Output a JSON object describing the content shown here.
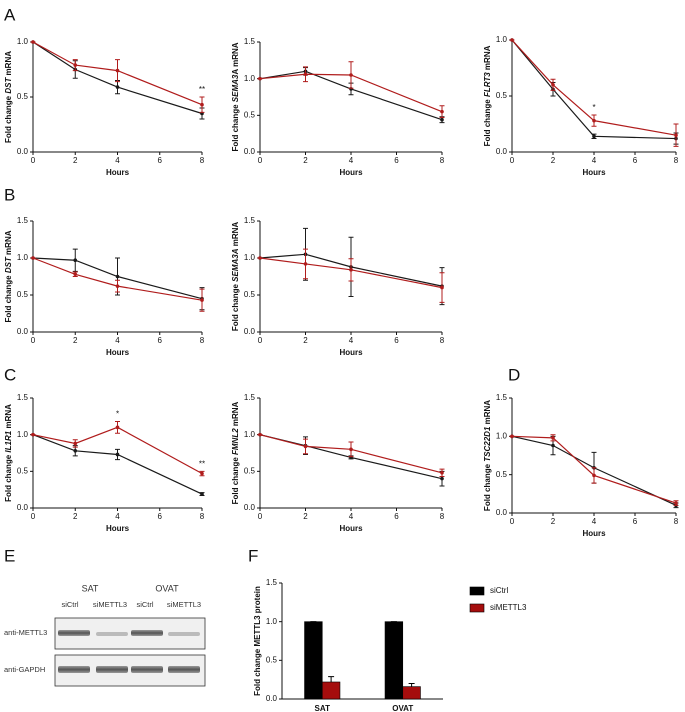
{
  "panel_labels": [
    "A",
    "B",
    "C",
    "D",
    "E",
    "F"
  ],
  "western_blot": {
    "groups": [
      "SAT",
      "OVAT"
    ],
    "lanes": [
      "siCtrl",
      "siMETTL3",
      "siCtrl",
      "siMETTL3"
    ],
    "antibodies": [
      "anti-METTL3",
      "anti-GAPDH"
    ]
  },
  "chart_data": [
    {
      "type": "line",
      "ylabel": [
        "Fold change ",
        "DST",
        " mRNA"
      ],
      "xlabel": "Hours",
      "x": [
        0,
        2,
        4,
        8
      ],
      "xlim": [
        0,
        8
      ],
      "xticks": [
        0,
        2,
        4,
        6,
        8
      ],
      "ylim": [
        0,
        1
      ],
      "yticks": [
        {
          "value": 0,
          "label": "0.0"
        },
        {
          "value": 0.5,
          "label": "0.5"
        },
        {
          "value": 1,
          "label": "1.0"
        }
      ],
      "series": [
        {
          "color": "#1a1a1a",
          "values": [
            1,
            0.75,
            0.59,
            0.35
          ],
          "errors": [
            0,
            0.08,
            0.06,
            0.05
          ]
        },
        {
          "color": "#b01c1c",
          "values": [
            1,
            0.79,
            0.74,
            0.43
          ],
          "errors": [
            0,
            0.05,
            0.1,
            0.07
          ]
        }
      ],
      "annotations": [
        {
          "text": "**",
          "x": 8
        }
      ]
    },
    {
      "type": "line",
      "ylabel": [
        "Fold change ",
        "SEMA3",
        "A mRNA"
      ],
      "xlabel": "Hours",
      "x": [
        0,
        2,
        4,
        8
      ],
      "xlim": [
        0,
        8
      ],
      "xticks": [
        0,
        2,
        4,
        6,
        8
      ],
      "ylim": [
        0,
        1.5
      ],
      "yticks": [
        {
          "value": 0,
          "label": "0.0"
        },
        {
          "value": 0.5,
          "label": "0.5"
        },
        {
          "value": 1,
          "label": "1.0"
        },
        {
          "value": 1.5,
          "label": "1.5"
        }
      ],
      "series": [
        {
          "color": "#1a1a1a",
          "values": [
            1,
            1.1,
            0.86,
            0.44
          ],
          "errors": [
            0,
            0.05,
            0.08,
            0.04
          ]
        },
        {
          "color": "#b01c1c",
          "values": [
            1,
            1.06,
            1.05,
            0.55
          ],
          "errors": [
            0,
            0.1,
            0.18,
            0.08
          ]
        }
      ]
    },
    {
      "type": "line",
      "ylabel": [
        "Fold change ",
        "FLRT3",
        " mRNA"
      ],
      "xlabel": "Hours",
      "x": [
        0,
        2,
        4,
        8
      ],
      "xlim": [
        0,
        8
      ],
      "xticks": [
        0,
        2,
        4,
        6,
        8
      ],
      "ylim": [
        0,
        1
      ],
      "yticks": [
        {
          "value": 0,
          "label": "0.0"
        },
        {
          "value": 0.5,
          "label": "0.5"
        },
        {
          "value": 1,
          "label": "1.0"
        }
      ],
      "series": [
        {
          "color": "#1a1a1a",
          "values": [
            1,
            0.56,
            0.14,
            0.12
          ],
          "errors": [
            0,
            0.06,
            0.02,
            0.05
          ]
        },
        {
          "color": "#b01c1c",
          "values": [
            1,
            0.6,
            0.28,
            0.15
          ],
          "errors": [
            0,
            0.05,
            0.05,
            0.1
          ]
        }
      ],
      "annotations": [
        {
          "text": "*",
          "x": 4
        }
      ]
    },
    {
      "type": "line",
      "ylabel": [
        "Fold change ",
        "DST",
        " mRNA"
      ],
      "xlabel": "Hours",
      "x": [
        0,
        2,
        4,
        8
      ],
      "xlim": [
        0,
        8
      ],
      "xticks": [
        0,
        2,
        4,
        6,
        8
      ],
      "ylim": [
        0,
        1.5
      ],
      "yticks": [
        {
          "value": 0,
          "label": "0.0"
        },
        {
          "value": 0.5,
          "label": "0.5"
        },
        {
          "value": 1,
          "label": "1.0"
        },
        {
          "value": 1.5,
          "label": "1.5"
        }
      ],
      "series": [
        {
          "color": "#1a1a1a",
          "values": [
            1,
            0.97,
            0.75,
            0.45
          ],
          "errors": [
            0,
            0.15,
            0.25,
            0.15
          ]
        },
        {
          "color": "#b01c1c",
          "values": [
            1,
            0.78,
            0.62,
            0.43
          ],
          "errors": [
            0,
            0.03,
            0.08,
            0.15
          ]
        }
      ]
    },
    {
      "type": "line",
      "ylabel": [
        "Fold change ",
        "SEMA3A",
        " mRNA"
      ],
      "xlabel": "Hours",
      "x": [
        0,
        2,
        4,
        8
      ],
      "xlim": [
        0,
        8
      ],
      "xticks": [
        0,
        2,
        4,
        6,
        8
      ],
      "ylim": [
        0,
        1.5
      ],
      "yticks": [
        {
          "value": 0,
          "label": "0.0"
        },
        {
          "value": 0.5,
          "label": "0.5"
        },
        {
          "value": 1,
          "label": "1.0"
        },
        {
          "value": 1.5,
          "label": "1.5"
        }
      ],
      "series": [
        {
          "color": "#1a1a1a",
          "values": [
            1,
            1.05,
            0.88,
            0.62
          ],
          "errors": [
            0,
            0.35,
            0.4,
            0.25
          ]
        },
        {
          "color": "#b01c1c",
          "values": [
            1,
            0.92,
            0.84,
            0.6
          ],
          "errors": [
            0,
            0.2,
            0.15,
            0.2
          ]
        }
      ]
    },
    {
      "type": "line",
      "ylabel": [
        "Fold change ",
        "IL1R1",
        " mRNA"
      ],
      "xlabel": "Hours",
      "x": [
        0,
        2,
        4,
        8
      ],
      "xlim": [
        0,
        8
      ],
      "xticks": [
        0,
        2,
        4,
        6,
        8
      ],
      "ylim": [
        0,
        1.5
      ],
      "yticks": [
        {
          "value": 0,
          "label": "0.0"
        },
        {
          "value": 0.5,
          "label": "0.5"
        },
        {
          "value": 1,
          "label": "1.0"
        },
        {
          "value": 1.5,
          "label": "1.5"
        }
      ],
      "series": [
        {
          "color": "#1a1a1a",
          "values": [
            1,
            0.78,
            0.73,
            0.19
          ],
          "errors": [
            0,
            0.07,
            0.07,
            0.02
          ]
        },
        {
          "color": "#b01c1c",
          "values": [
            1,
            0.88,
            1.1,
            0.47
          ],
          "errors": [
            0,
            0.05,
            0.08,
            0.03
          ]
        }
      ],
      "annotations": [
        {
          "text": "*",
          "x": 4
        },
        {
          "text": "**",
          "x": 8
        }
      ]
    },
    {
      "type": "line",
      "ylabel": [
        "Fold change ",
        "FMNL2",
        " mRNA"
      ],
      "xlabel": "Hours",
      "x": [
        0,
        2,
        4,
        8
      ],
      "xlim": [
        0,
        8
      ],
      "xticks": [
        0,
        2,
        4,
        6,
        8
      ],
      "ylim": [
        0,
        1.5
      ],
      "yticks": [
        {
          "value": 0,
          "label": "0.0"
        },
        {
          "value": 0.5,
          "label": "0.5"
        },
        {
          "value": 1,
          "label": "1.0"
        },
        {
          "value": 1.5,
          "label": "1.5"
        }
      ],
      "series": [
        {
          "color": "#1a1a1a",
          "values": [
            1,
            0.85,
            0.69,
            0.4
          ],
          "errors": [
            0,
            0.12,
            0.02,
            0.1
          ]
        },
        {
          "color": "#b01c1c",
          "values": [
            1,
            0.84,
            0.8,
            0.48
          ],
          "errors": [
            0,
            0.1,
            0.1,
            0.05
          ]
        }
      ]
    },
    {
      "type": "line",
      "ylabel": [
        "Fold change ",
        "TSC22D1",
        " mRNA"
      ],
      "xlabel": "Hours",
      "x": [
        0,
        2,
        4,
        8
      ],
      "xlim": [
        0,
        8
      ],
      "xticks": [
        0,
        2,
        4,
        6,
        8
      ],
      "ylim": [
        0,
        1.5
      ],
      "yticks": [
        {
          "value": 0,
          "label": "0.0"
        },
        {
          "value": 0.5,
          "label": "0.5"
        },
        {
          "value": 1,
          "label": "1.0"
        },
        {
          "value": 1.5,
          "label": "1.5"
        }
      ],
      "series": [
        {
          "color": "#1a1a1a",
          "values": [
            1,
            0.88,
            0.59,
            0.1
          ],
          "errors": [
            0,
            0.12,
            0.2,
            0.03
          ]
        },
        {
          "color": "#b01c1c",
          "values": [
            1,
            0.98,
            0.49,
            0.13
          ],
          "errors": [
            0,
            0.04,
            0.1,
            0.03
          ]
        }
      ]
    },
    {
      "type": "bar",
      "ylabel": [
        "Fold change METTL3 protein"
      ],
      "categories": [
        "SAT",
        "OVAT"
      ],
      "ylim": [
        0,
        1.5
      ],
      "yticks": [
        {
          "value": 0,
          "label": "0.0"
        },
        {
          "value": 0.5,
          "label": "0.5"
        },
        {
          "value": 1,
          "label": "1.0"
        },
        {
          "value": 1.5,
          "label": "1.5"
        }
      ],
      "series": [
        {
          "name": "siCtrl",
          "color": "#000000",
          "values": [
            1,
            1
          ],
          "errors": [
            0,
            0
          ]
        },
        {
          "name": "siMETTL3",
          "color": "#a50d0d",
          "values": [
            0.22,
            0.16
          ],
          "errors": [
            0.07,
            0.04
          ]
        }
      ],
      "legend": "right"
    }
  ]
}
